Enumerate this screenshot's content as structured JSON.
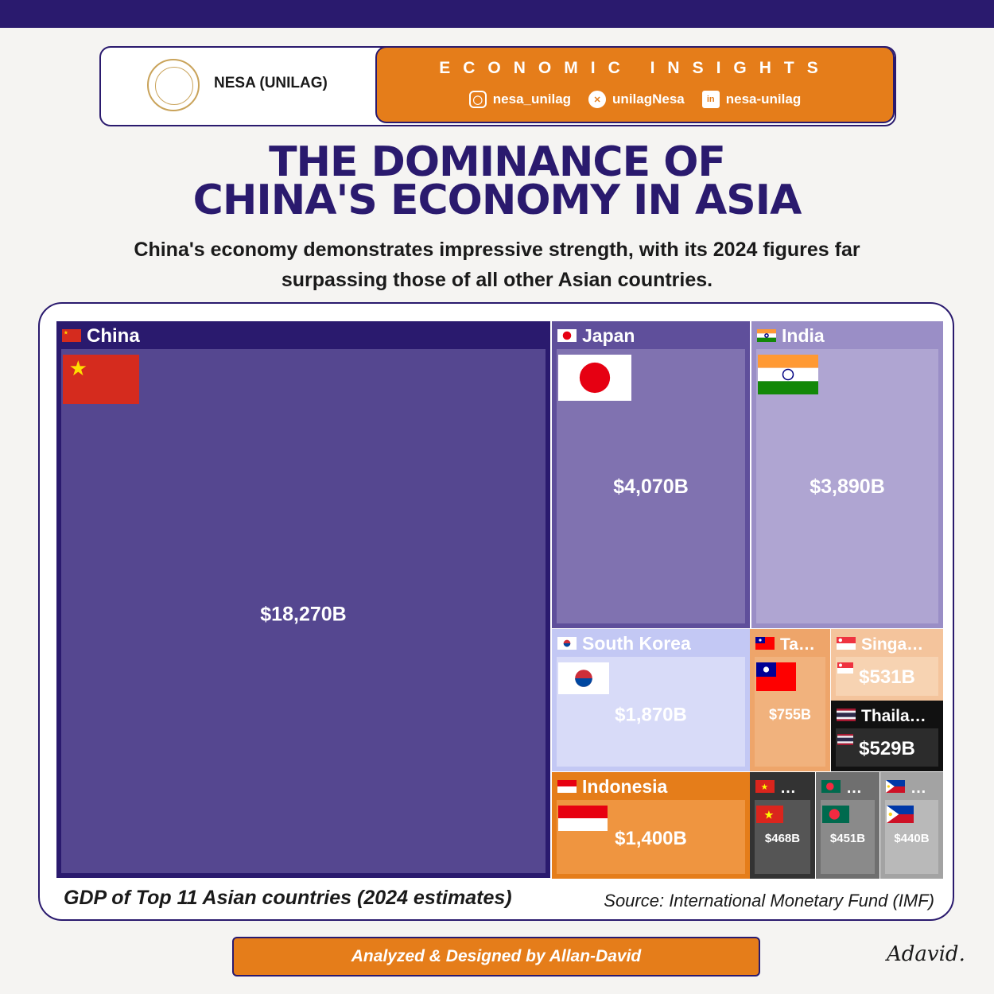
{
  "header": {
    "org_name": "NESA (UNILAG)",
    "banner_title": "ECONOMIC INSIGHTS",
    "socials": [
      {
        "icon": "instagram-icon",
        "handle": "nesa_unilag"
      },
      {
        "icon": "x-icon",
        "handle": "unilagNesa"
      },
      {
        "icon": "linkedin-icon",
        "handle": "nesa-unilag"
      }
    ]
  },
  "title_line1": "THE DOMINANCE OF",
  "title_line2": "CHINA'S ECONOMY IN ASIA",
  "subtitle": "China's economy demonstrates impressive strength, with its 2024 figures far surpassing those of all other Asian countries.",
  "caption": "GDP of Top 11 Asian countries (2024 estimates)",
  "source": "Source: International Monetary Fund (IMF)",
  "credit": "Analyzed & Designed by Allan-David",
  "signature": "Adavid.",
  "colors": {
    "navy": "#2a1a6e",
    "orange": "#e57d1a"
  },
  "chart_data": {
    "type": "treemap",
    "unit": "USD billions",
    "items": [
      {
        "label": "China",
        "display": "China",
        "value": 18270,
        "value_label": "$18,270B",
        "color": "#554790",
        "header": "#2a1a6e",
        "flag": "china"
      },
      {
        "label": "Japan",
        "display": "Japan",
        "value": 4070,
        "value_label": "$4,070B",
        "color": "#8072b0",
        "header": "#5f4f9b",
        "flag": "japan"
      },
      {
        "label": "India",
        "display": "India",
        "value": 3890,
        "value_label": "$3,890B",
        "color": "#afa5d2",
        "header": "#9a8ec6",
        "flag": "india"
      },
      {
        "label": "South Korea",
        "display": "South Korea",
        "value": 1870,
        "value_label": "$1,870B",
        "color": "#d8dbf8",
        "header": "#c3c8f4",
        "flag": "korea"
      },
      {
        "label": "Indonesia",
        "display": "Indonesia",
        "value": 1400,
        "value_label": "$1,400B",
        "color": "#ef9540",
        "header": "#e57d1a",
        "flag": "indonesia"
      },
      {
        "label": "Taiwan",
        "display": "Ta…",
        "value": 755,
        "value_label": "$755B",
        "color": "#f1b27d",
        "header": "#eea56a",
        "flag": "taiwan"
      },
      {
        "label": "Singapore",
        "display": "Singa…",
        "value": 531,
        "value_label": "$531B",
        "color": "#f7d3b2",
        "header": "#f4c49c",
        "flag": "singapore"
      },
      {
        "label": "Thailand",
        "display": "Thaila…",
        "value": 529,
        "value_label": "$529B",
        "color": "#2c2c2c",
        "header": "#111111",
        "flag": "thailand"
      },
      {
        "label": "Vietnam",
        "display": "…",
        "value": 468,
        "value_label": "$468B",
        "color": "#555555",
        "header": "#333333",
        "flag": "vietnam"
      },
      {
        "label": "Bangladesh",
        "display": "…",
        "value": 451,
        "value_label": "$451B",
        "color": "#8a8a8a",
        "header": "#6f6f6f",
        "flag": "bangladesh"
      },
      {
        "label": "Philippines",
        "display": "…",
        "value": 440,
        "value_label": "$440B",
        "color": "#b9b9b9",
        "header": "#a3a3a3",
        "flag": "philippines"
      }
    ]
  }
}
